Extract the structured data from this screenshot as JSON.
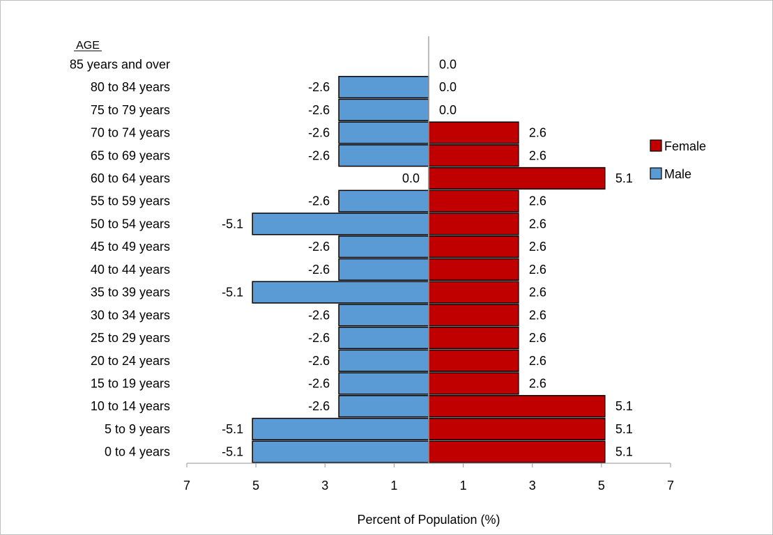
{
  "chart_data": {
    "type": "bar",
    "orientation": "horizontal",
    "age_header": "AGE",
    "xlabel": "Percent of Population (%)",
    "categories": [
      "0 to 4 years",
      "5 to 9 years",
      "10 to 14 years",
      "15 to 19 years",
      "20 to 24 years",
      "25 to 29 years",
      "30 to 34 years",
      "35 to 39 years",
      "40 to 44 years",
      "45 to 49 years",
      "50 to 54 years",
      "55 to 59 years",
      "60 to 64 years",
      "65 to 69 years",
      "70 to 74 years",
      "75 to 79 years",
      "80 to 84 years",
      "85 years and over"
    ],
    "series": [
      {
        "name": "Female",
        "color": "#c00000",
        "values": [
          5.1,
          5.1,
          5.1,
          2.6,
          2.6,
          2.6,
          2.6,
          2.6,
          2.6,
          2.6,
          2.6,
          2.6,
          5.1,
          2.6,
          2.6,
          0.0,
          0.0,
          0.0
        ],
        "labels": [
          "5.1",
          "5.1",
          "5.1",
          "2.6",
          "2.6",
          "2.6",
          "2.6",
          "2.6",
          "2.6",
          "2.6",
          "2.6",
          "2.6",
          "5.1",
          "2.6",
          "2.6",
          "0.0",
          "0.0",
          "0.0"
        ]
      },
      {
        "name": "Male",
        "color": "#5b9bd5",
        "values": [
          -5.1,
          -5.1,
          -2.6,
          -2.6,
          -2.6,
          -2.6,
          -2.6,
          -5.1,
          -2.6,
          -2.6,
          -5.1,
          -2.6,
          0.0,
          -2.6,
          -2.6,
          -2.6,
          -2.6,
          0.0
        ],
        "labels": [
          "-5.1",
          "-5.1",
          "-2.6",
          "-2.6",
          "-2.6",
          "-2.6",
          "-2.6",
          "-5.1",
          "-2.6",
          "-2.6",
          "-5.1",
          "-2.6",
          "0.0",
          "-2.6",
          "-2.6",
          "-2.6",
          "-2.6",
          ""
        ]
      }
    ],
    "xlim": [
      -7,
      7
    ],
    "xticks": [
      -7,
      -5,
      -3,
      -1,
      1,
      3,
      5,
      7
    ],
    "xtick_labels": [
      "7",
      "5",
      "3",
      "1",
      "1",
      "3",
      "5",
      "7"
    ],
    "legend": {
      "placement": "right",
      "order": [
        "Female",
        "Male"
      ]
    },
    "grid": false
  }
}
